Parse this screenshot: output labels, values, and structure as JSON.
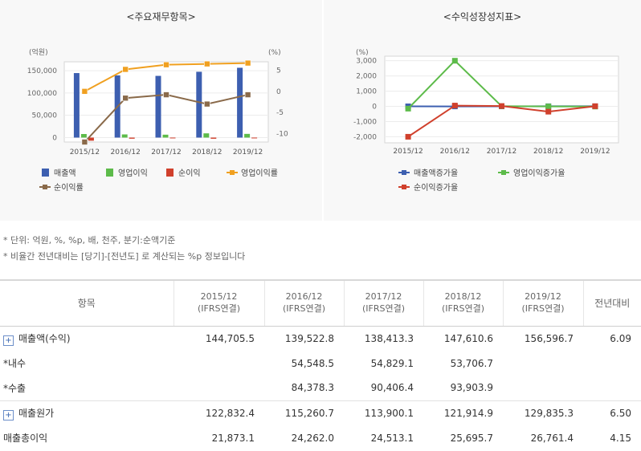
{
  "left_title": "<주요재무항목>",
  "right_title": "<수익성장성지표>",
  "chart_data": [
    {
      "type": "bar",
      "title": "<주요재무항목>",
      "categories": [
        "2015/12",
        "2016/12",
        "2017/12",
        "2018/12",
        "2019/12"
      ],
      "y_left_label": "(억원)",
      "y_right_label": "(%)",
      "y_left_ticks": [
        "150,000",
        "100,000",
        "50,000",
        "0"
      ],
      "y_right_ticks": [
        "5",
        "0",
        "-5",
        "-10"
      ],
      "ylim_left": [
        -10000,
        170000
      ],
      "ylim_right": [
        -12,
        7
      ],
      "series": [
        {
          "name": "매출액",
          "type": "bar",
          "axis": "left",
          "color": "#3d5fb0",
          "values": [
            144705.5,
            139522.8,
            138413.3,
            147610.6,
            156596.7
          ]
        },
        {
          "name": "영업이익",
          "type": "bar",
          "axis": "left",
          "color": "#5dbb4a",
          "values": [
            8000,
            7100,
            6500,
            9500,
            8300
          ]
        },
        {
          "name": "순이익",
          "type": "bar",
          "axis": "left",
          "color": "#d0402c",
          "values": [
            -7000,
            -2500,
            -700,
            -2600,
            -900
          ]
        },
        {
          "name": "영업이익률",
          "type": "line",
          "axis": "right",
          "color": "#f0a020",
          "values": [
            0,
            5.2,
            6.3,
            6.5,
            6.7
          ]
        },
        {
          "name": "순이익률",
          "type": "line",
          "axis": "right",
          "color": "#8a6a4a",
          "values": [
            -12,
            -1.6,
            -0.8,
            -3,
            -0.8
          ]
        }
      ],
      "legend_position": "bottom",
      "grid": true
    },
    {
      "type": "line",
      "title": "<수익성장성지표>",
      "categories": [
        "2015/12",
        "2016/12",
        "2017/12",
        "2018/12",
        "2019/12"
      ],
      "ylabel": "(%)",
      "y_ticks": [
        "3,000",
        "2,000",
        "1,000",
        "0",
        "-1,000",
        "-2,000"
      ],
      "ylim": [
        -2400,
        3300
      ],
      "series": [
        {
          "name": "매출액증가율",
          "color": "#3d5fb0",
          "values": [
            0,
            -3.6,
            -0.8,
            6.6,
            6.1
          ]
        },
        {
          "name": "영업이익증가율",
          "color": "#5dbb4a",
          "values": [
            -150,
            3000,
            10,
            -5,
            -12
          ]
        },
        {
          "name": "순이익증가율",
          "color": "#d0402c",
          "values": [
            -2000,
            50,
            20,
            -350,
            10
          ]
        }
      ],
      "legend_position": "bottom",
      "grid": true
    }
  ],
  "notes": [
    "* 단위: 억원, %, %p, 배, 천주, 분기:순액기준",
    "* 비율간 전년대비는 [당기]-[전년도] 로 계산되는 %p 정보입니다"
  ],
  "table": {
    "header_item": "항목",
    "periods": [
      {
        "year": "2015/12",
        "basis": "(IFRS연결)"
      },
      {
        "year": "2016/12",
        "basis": "(IFRS연결)"
      },
      {
        "year": "2017/12",
        "basis": "(IFRS연결)"
      },
      {
        "year": "2018/12",
        "basis": "(IFRS연결)"
      },
      {
        "year": "2019/12",
        "basis": "(IFRS연결)"
      }
    ],
    "header_yoy": "전년대비",
    "rows": [
      {
        "label": "매출액(수익)",
        "expand": "+",
        "values": [
          "144,705.5",
          "139,522.8",
          "138,413.3",
          "147,610.6",
          "156,596.7"
        ],
        "yoy": "6.09"
      },
      {
        "label": "*내수",
        "values": [
          "",
          "54,548.5",
          "54,829.1",
          "53,706.7",
          ""
        ],
        "yoy": ""
      },
      {
        "label": "*수출",
        "values": [
          "",
          "84,378.3",
          "90,406.4",
          "93,903.9",
          ""
        ],
        "yoy": ""
      },
      {
        "label": "매출원가",
        "expand": "+",
        "values": [
          "122,832.4",
          "115,260.7",
          "113,900.1",
          "121,914.9",
          "129,835.3"
        ],
        "yoy": "6.50"
      },
      {
        "label": "매출총이익",
        "values": [
          "21,873.1",
          "24,262.0",
          "24,513.1",
          "25,695.7",
          "26,761.4"
        ],
        "yoy": "4.15"
      }
    ]
  }
}
